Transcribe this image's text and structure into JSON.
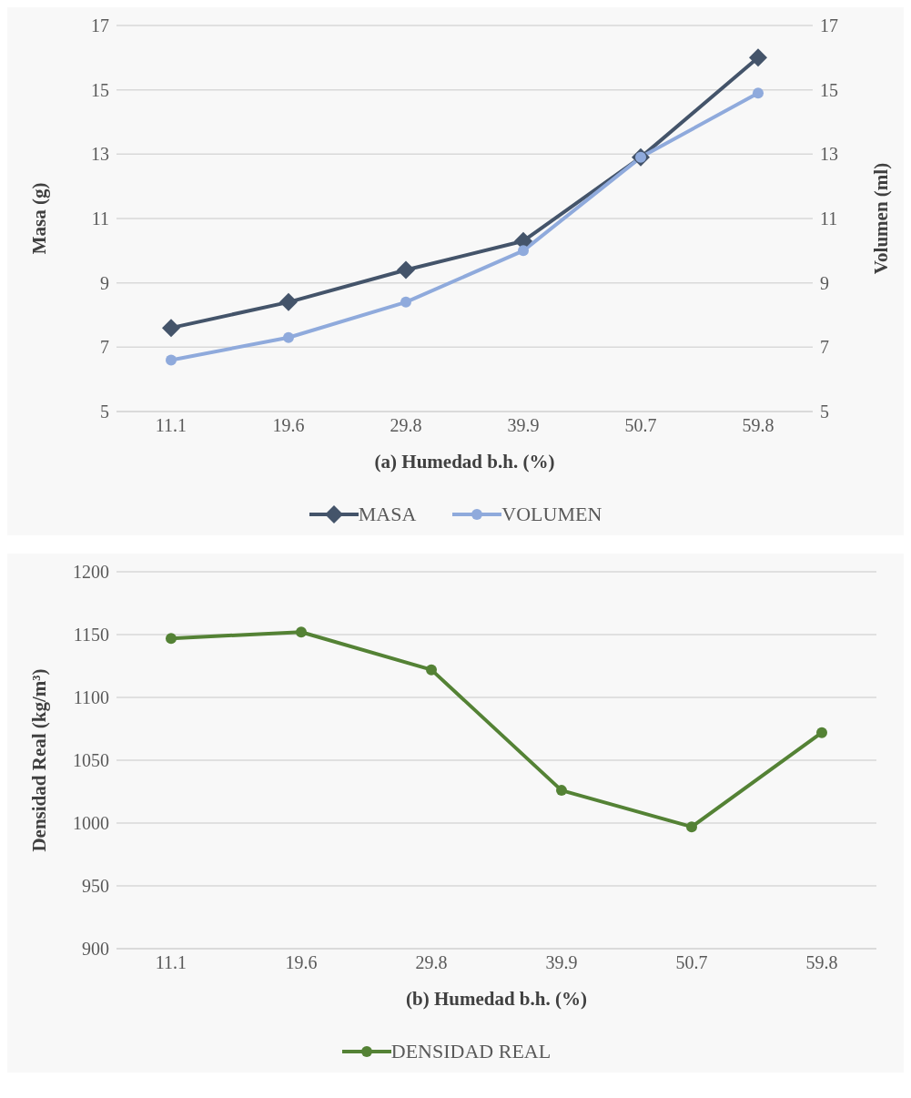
{
  "chart_data": [
    {
      "type": "line",
      "xlabel": "(a) Humedad b.h. (%)",
      "ylabel": "Masa (g)",
      "y2label": "Volumen (ml)",
      "categories": [
        "11.1",
        "19.6",
        "29.8",
        "39.9",
        "50.7",
        "59.8"
      ],
      "series": [
        {
          "name": "MASA",
          "color": "#44546a",
          "marker": "diamond",
          "values": [
            7.6,
            8.4,
            9.4,
            10.3,
            12.9,
            16.0
          ]
        },
        {
          "name": "VOLUMEN",
          "color": "#8faadc",
          "marker": "circle",
          "axis": "y2",
          "values": [
            6.6,
            7.3,
            8.4,
            10.0,
            12.9,
            14.9
          ]
        }
      ],
      "ylim": [
        5,
        17
      ],
      "yticks": [
        5,
        7,
        9,
        11,
        13,
        15,
        17
      ],
      "y2lim": [
        5,
        17
      ],
      "y2ticks": [
        5,
        7,
        9,
        11,
        13,
        15,
        17
      ],
      "grid": "y",
      "legend": "bottom"
    },
    {
      "type": "line",
      "xlabel": "(b) Humedad b.h. (%)",
      "ylabel": "Densidad Real (kg/m³)",
      "categories": [
        "11.1",
        "19.6",
        "29.8",
        "39.9",
        "50.7",
        "59.8"
      ],
      "series": [
        {
          "name": "DENSIDAD REAL",
          "color": "#548235",
          "marker": "circle",
          "values": [
            1147,
            1152,
            1122,
            1026,
            997,
            1072
          ]
        }
      ],
      "ylim": [
        900,
        1200
      ],
      "yticks": [
        900,
        950,
        1000,
        1050,
        1100,
        1150,
        1200
      ],
      "grid": "y",
      "legend": "bottom"
    }
  ]
}
